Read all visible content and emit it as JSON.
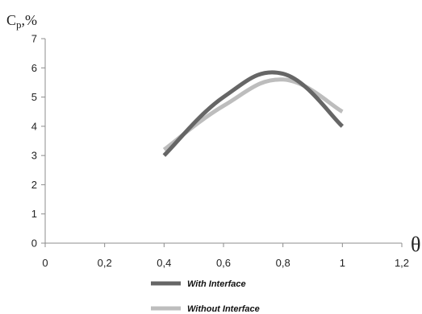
{
  "chart_data": {
    "type": "line",
    "title": "",
    "ylabel_main": "C",
    "ylabel_sub": "p",
    "ylabel_suffix": ",%",
    "xlabel": "θ",
    "xlim": [
      0,
      1.2
    ],
    "ylim": [
      0,
      7
    ],
    "x_ticks": [
      "0",
      "0,2",
      "0,4",
      "0,6",
      "0,8",
      "1",
      "1,2"
    ],
    "y_ticks": [
      "0",
      "1",
      "2",
      "3",
      "4",
      "5",
      "6",
      "7"
    ],
    "grid": false,
    "legend_position": "bottom",
    "x": [
      0.4,
      0.6,
      0.8,
      1.0
    ],
    "series": [
      {
        "name": "With Interface",
        "color": "#666666",
        "values": [
          3.0,
          5.0,
          5.8,
          4.0
        ]
      },
      {
        "name": "Without Interface",
        "color": "#bdbdbd",
        "values": [
          3.2,
          4.7,
          5.6,
          4.5
        ]
      }
    ]
  }
}
